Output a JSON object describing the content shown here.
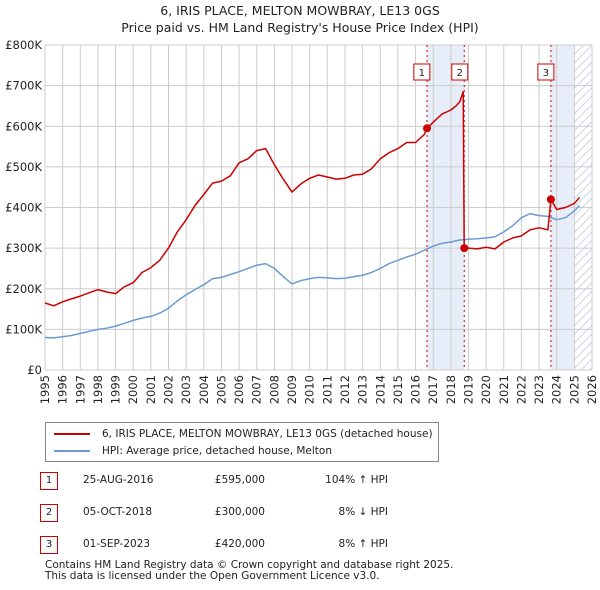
{
  "title_line1": "6, IRIS PLACE, MELTON MOWBRAY, LE13 0GS",
  "title_line2": "Price paid vs. HM Land Registry's House Price Index (HPI)",
  "colors": {
    "property": "#cc0000",
    "hpi": "#6b9bd1",
    "shade": "#e8eef9",
    "hatch": "#c8d4ea",
    "grid": "#cccccc",
    "vline": "#cc0000"
  },
  "chart_data": {
    "type": "line",
    "title": "6, IRIS PLACE, MELTON MOWBRAY, LE13 0GS — Price paid vs. HM Land Registry's House Price Index (HPI)",
    "xlabel": "",
    "ylabel": "",
    "xlim": [
      1995,
      2026
    ],
    "ylim": [
      0,
      800000
    ],
    "y_ticks": [
      0,
      100000,
      200000,
      300000,
      400000,
      500000,
      600000,
      700000,
      800000
    ],
    "y_tick_labels": [
      "£0",
      "£100K",
      "£200K",
      "£300K",
      "£400K",
      "£500K",
      "£600K",
      "£700K",
      "£800K"
    ],
    "x_ticks": [
      1995,
      1996,
      1997,
      1998,
      1999,
      2000,
      2001,
      2002,
      2003,
      2004,
      2005,
      2006,
      2007,
      2008,
      2009,
      2010,
      2011,
      2012,
      2013,
      2014,
      2015,
      2016,
      2017,
      2018,
      2019,
      2020,
      2021,
      2022,
      2023,
      2024,
      2025,
      2026
    ],
    "x_tick_labels": [
      "1995",
      "1996",
      "1997",
      "1998",
      "1999",
      "2000",
      "2001",
      "2002",
      "2003",
      "2004",
      "2005",
      "2006",
      "2007",
      "2008",
      "2009",
      "2010",
      "2011",
      "2012",
      "2013",
      "2014",
      "2015",
      "2016",
      "2017",
      "2018",
      "2019",
      "2020",
      "2021",
      "2022",
      "2023",
      "2024",
      "2025",
      "2026"
    ],
    "grid": true,
    "shaded_periods": [
      [
        2016.65,
        2018.76
      ],
      [
        2023.67,
        2025.0
      ]
    ],
    "hatched_period": [
      2025.0,
      2026.0
    ],
    "series": [
      {
        "name": "6, IRIS PLACE, MELTON MOWBRAY, LE13 0GS (detached house)",
        "color": "#cc0000",
        "x": [
          1995.0,
          1995.5,
          1996.0,
          1996.5,
          1997.0,
          1997.5,
          1998.0,
          1998.5,
          1999.0,
          1999.5,
          2000.0,
          2000.5,
          2001.0,
          2001.5,
          2002.0,
          2002.5,
          2003.0,
          2003.5,
          2004.0,
          2004.5,
          2005.0,
          2005.5,
          2006.0,
          2006.5,
          2007.0,
          2007.5,
          2008.0,
          2008.5,
          2009.0,
          2009.5,
          2010.0,
          2010.5,
          2011.0,
          2011.5,
          2012.0,
          2012.5,
          2013.0,
          2013.5,
          2014.0,
          2014.5,
          2015.0,
          2015.5,
          2016.0,
          2016.5,
          2016.65,
          2017.0,
          2017.5,
          2018.0,
          2018.3,
          2018.5,
          2018.7,
          2018.76,
          2019.0,
          2019.5,
          2020.0,
          2020.5,
          2021.0,
          2021.5,
          2022.0,
          2022.5,
          2023.0,
          2023.5,
          2023.67,
          2024.0,
          2024.5,
          2025.0,
          2025.3
        ],
        "values": [
          165000,
          158000,
          168000,
          175000,
          182000,
          190000,
          198000,
          192000,
          188000,
          205000,
          215000,
          240000,
          252000,
          270000,
          300000,
          340000,
          370000,
          405000,
          432000,
          460000,
          465000,
          478000,
          510000,
          520000,
          540000,
          545000,
          505000,
          470000,
          438000,
          458000,
          472000,
          480000,
          475000,
          470000,
          472000,
          480000,
          482000,
          495000,
          520000,
          535000,
          545000,
          560000,
          560000,
          580000,
          595000,
          610000,
          630000,
          640000,
          650000,
          660000,
          685000,
          300000,
          300000,
          298000,
          302000,
          298000,
          315000,
          325000,
          330000,
          345000,
          350000,
          345000,
          420000,
          395000,
          400000,
          410000,
          425000
        ]
      },
      {
        "name": "HPI: Average price, detached house, Melton",
        "color": "#6b9bd1",
        "x": [
          1995.0,
          1995.5,
          1996.0,
          1996.5,
          1997.0,
          1997.5,
          1998.0,
          1998.5,
          1999.0,
          1999.5,
          2000.0,
          2000.5,
          2001.0,
          2001.5,
          2002.0,
          2002.5,
          2003.0,
          2003.5,
          2004.0,
          2004.5,
          2005.0,
          2005.5,
          2006.0,
          2006.5,
          2007.0,
          2007.5,
          2008.0,
          2008.5,
          2009.0,
          2009.5,
          2010.0,
          2010.5,
          2011.0,
          2011.5,
          2012.0,
          2012.5,
          2013.0,
          2013.5,
          2014.0,
          2014.5,
          2015.0,
          2015.5,
          2016.0,
          2016.5,
          2017.0,
          2017.5,
          2018.0,
          2018.5,
          2019.0,
          2019.5,
          2020.0,
          2020.5,
          2021.0,
          2021.5,
          2022.0,
          2022.5,
          2023.0,
          2023.5,
          2024.0,
          2024.5,
          2025.0,
          2025.3
        ],
        "values": [
          80000,
          79000,
          82000,
          85000,
          90000,
          95000,
          100000,
          103000,
          108000,
          115000,
          122000,
          128000,
          132000,
          140000,
          152000,
          170000,
          185000,
          198000,
          210000,
          225000,
          228000,
          235000,
          242000,
          250000,
          258000,
          262000,
          250000,
          230000,
          212000,
          220000,
          225000,
          228000,
          227000,
          225000,
          226000,
          230000,
          233000,
          240000,
          250000,
          262000,
          270000,
          278000,
          285000,
          295000,
          305000,
          312000,
          315000,
          320000,
          322000,
          323000,
          325000,
          328000,
          340000,
          355000,
          375000,
          385000,
          380000,
          378000,
          370000,
          375000,
          392000,
          405000
        ]
      }
    ],
    "sales": [
      {
        "label": "1",
        "x": 2016.65,
        "value": 595000
      },
      {
        "label": "2",
        "x": 2018.76,
        "value": 300000
      },
      {
        "label": "3",
        "x": 2023.67,
        "value": 420000
      }
    ]
  },
  "legend": {
    "property_label": "6, IRIS PLACE, MELTON MOWBRAY, LE13 0GS (detached house)",
    "hpi_label": "HPI: Average price, detached house, Melton"
  },
  "table": [
    {
      "num": "1",
      "date": "25-AUG-2016",
      "price": "£595,000",
      "hpi": "104% ↑ HPI"
    },
    {
      "num": "2",
      "date": "05-OCT-2018",
      "price": "£300,000",
      "hpi": "8% ↓ HPI"
    },
    {
      "num": "3",
      "date": "01-SEP-2023",
      "price": "£420,000",
      "hpi": "8% ↑ HPI"
    }
  ],
  "footer_line1": "Contains HM Land Registry data © Crown copyright and database right 2025.",
  "footer_line2": "This data is licensed under the Open Government Licence v3.0."
}
